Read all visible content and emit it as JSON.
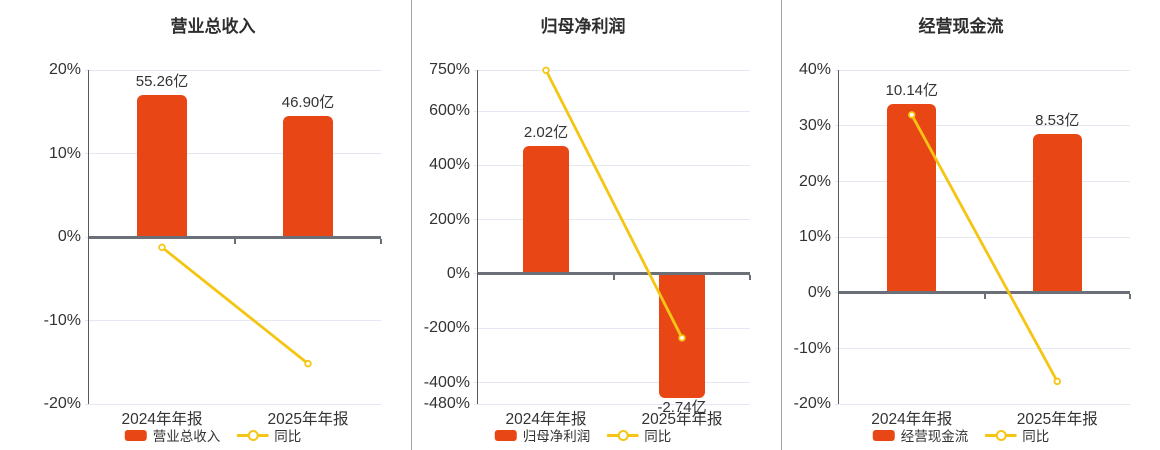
{
  "page": {
    "background": "#ffffff"
  },
  "colors": {
    "bar": "#E84715",
    "line": "#F5C513",
    "text": "#333333",
    "title": "#2E2E2E",
    "grid": "#E3E8F2",
    "zero_line": "#6B6F78",
    "axis_line": "#565A61",
    "divider": "#A5A5A0",
    "marker_fill": "#FFFFFF"
  },
  "chart_data": [
    {
      "type": "bar+line",
      "title": "营业总收入",
      "categories": [
        "2024年年报",
        "2025年年报"
      ],
      "bar_series": {
        "name": "营业总收入",
        "unit": "亿",
        "values": [
          55.26,
          46.9
        ],
        "labels": [
          "55.26亿",
          "46.90亿"
        ],
        "display": [
          17.05,
          14.47
        ]
      },
      "line_series": {
        "name": "同比",
        "values": [
          -1.2,
          -15.13
        ]
      },
      "y_axis": {
        "min": -20,
        "max": 20,
        "ticks": [
          "20%",
          "10%",
          "0%",
          "-10%",
          "-20%"
        ],
        "tick_values": [
          20,
          10,
          0,
          -10,
          -20
        ]
      },
      "legend_position": "bottom",
      "grid": true
    },
    {
      "type": "bar+line",
      "title": "归母净利润",
      "categories": [
        "2024年年报",
        "2025年年报"
      ],
      "bar_series": {
        "name": "归母净利润",
        "unit": "亿",
        "values": [
          2.02,
          -2.74
        ],
        "labels": [
          "2.02亿",
          "-2.74亿"
        ],
        "display": [
          471,
          -458
        ]
      },
      "line_series": {
        "name": "同比",
        "values": [
          750,
          -235.6
        ]
      },
      "y_axis": {
        "min": -480,
        "max": 750,
        "ticks": [
          "750%",
          "600%",
          "400%",
          "200%",
          "0%",
          "-200%",
          "-400%",
          "-480%"
        ],
        "tick_values": [
          750,
          600,
          400,
          200,
          0,
          -200,
          -400,
          -480
        ]
      },
      "legend_position": "bottom",
      "grid": true
    },
    {
      "type": "bar+line",
      "title": "经营现金流",
      "categories": [
        "2024年年报",
        "2025年年报"
      ],
      "bar_series": {
        "name": "经营现金流",
        "unit": "亿",
        "values": [
          10.14,
          8.53
        ],
        "labels": [
          "10.14亿",
          "8.53亿"
        ],
        "display": [
          33.9,
          28.55
        ]
      },
      "line_series": {
        "name": "同比",
        "values": [
          32.0,
          -15.88
        ]
      },
      "y_axis": {
        "min": -20,
        "max": 40,
        "ticks": [
          "40%",
          "30%",
          "20%",
          "10%",
          "0%",
          "-10%",
          "-20%"
        ],
        "tick_values": [
          40,
          30,
          20,
          10,
          0,
          -10,
          -20
        ]
      },
      "legend_position": "bottom",
      "grid": true
    }
  ]
}
